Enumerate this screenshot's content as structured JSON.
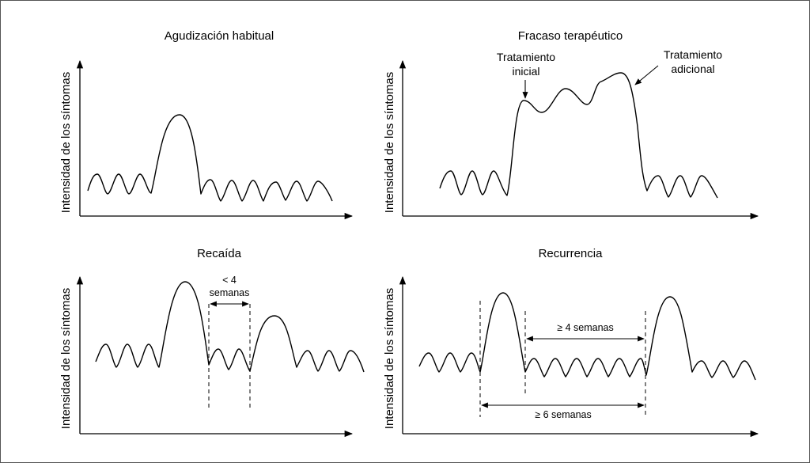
{
  "panels": {
    "p1": {
      "title": "Agudización habitual",
      "ylabel": "Intensidad de los síntomas"
    },
    "p2": {
      "title": "Fracaso terapéutico",
      "ylabel": "Intensidad de los síntomas",
      "annotations": {
        "initial_line1": "Tratamiento",
        "initial_line2": "inicial",
        "additional_line1": "Tratamiento",
        "additional_line2": "adicional"
      }
    },
    "p3": {
      "title": "Recaída",
      "ylabel": "Intensidad de los síntomas",
      "annotations": {
        "interval_line1": "< 4",
        "interval_line2": "semanas"
      }
    },
    "p4": {
      "title": "Recurrencia",
      "ylabel": "Intensidad de los síntomas",
      "annotations": {
        "interval_a": "≥ 4 semanas",
        "interval_b": "≥ 6 semanas"
      }
    }
  },
  "colors": {
    "line": "#000000",
    "background": "#ffffff",
    "frame": "#555555"
  }
}
